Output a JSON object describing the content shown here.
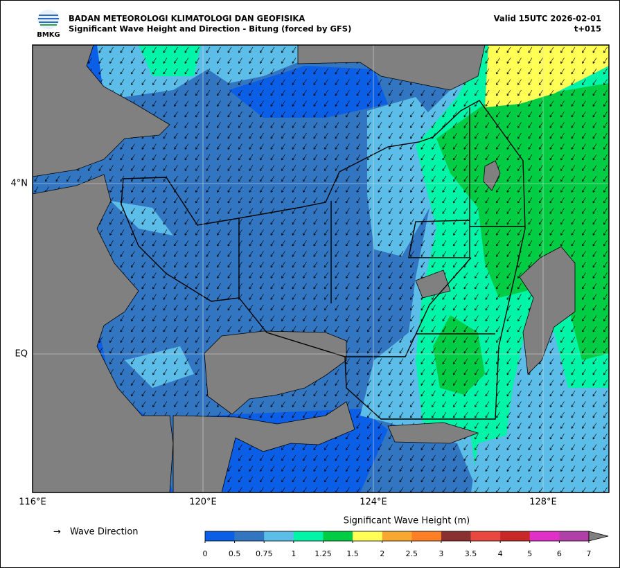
{
  "header": {
    "org": "BADAN METEOROLOGI KLIMATOLOGI DAN GEOFISIKA",
    "title": "Significant Wave Height and Direction - Bitung (forced by GFS)",
    "valid": "Valid 15UTC 2026-02-01",
    "lead": "t+015",
    "logo_text": "BMKG"
  },
  "map": {
    "lon_labels": [
      "116°E",
      "120°E",
      "124°E",
      "128°E"
    ],
    "lat_labels": [
      "4°N",
      "EQ"
    ]
  },
  "legend": {
    "arrow": "→",
    "direction_label": "Wave Direction",
    "colorbar_title": "Significant Wave Height (m)",
    "ticks": [
      0,
      0.5,
      0.75,
      1,
      1.25,
      1.5,
      2,
      2.5,
      3,
      3.5,
      4,
      5,
      6,
      7
    ],
    "colors": [
      "#0b5ee6",
      "#3276c2",
      "#5cbde8",
      "#00f5a8",
      "#00cc44",
      "#ffff55",
      "#f8a830",
      "#ff7f27",
      "#8b3030",
      "#e84840",
      "#c82828",
      "#e030c8",
      "#b040a8"
    ],
    "extend_color": "#808080"
  }
}
